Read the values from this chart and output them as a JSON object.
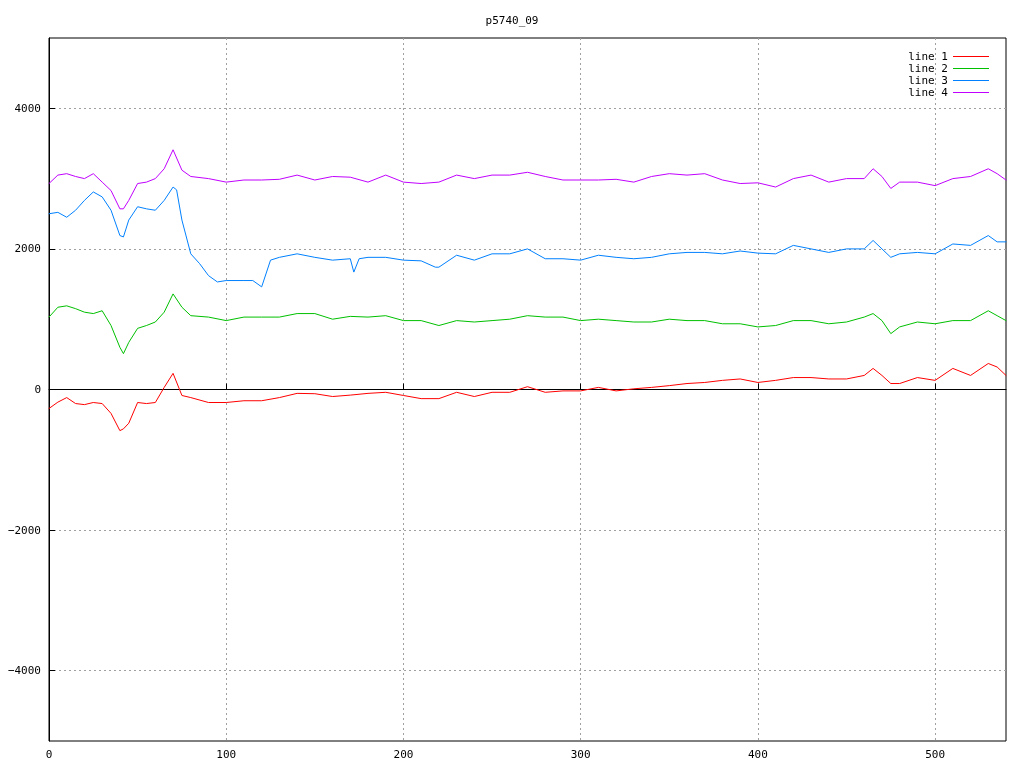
{
  "chart_data": {
    "type": "line",
    "title": "p5740_09",
    "xlim": [
      0,
      540
    ],
    "xticks": [
      0,
      100,
      200,
      300,
      400,
      500
    ],
    "ylim": [
      -5000,
      5000
    ],
    "yticks": [
      -4000,
      -2000,
      0,
      2000,
      4000
    ],
    "grid": true,
    "legend": "top right",
    "marker": "none",
    "line_style": "solid",
    "series": [
      {
        "name": "line 1",
        "color": "#ff0000",
        "x": [
          0,
          5,
          10,
          15,
          20,
          25,
          30,
          35,
          40,
          42,
          45,
          50,
          55,
          60,
          65,
          70,
          75,
          80,
          90,
          100,
          110,
          120,
          130,
          140,
          150,
          160,
          170,
          180,
          190,
          200,
          210,
          220,
          230,
          240,
          250,
          260,
          270,
          280,
          290,
          300,
          310,
          320,
          330,
          340,
          350,
          360,
          370,
          380,
          390,
          400,
          410,
          420,
          430,
          440,
          450,
          460,
          465,
          470,
          475,
          480,
          490,
          500,
          510,
          520,
          530,
          535,
          540
        ],
        "values": [
          -270,
          -180,
          -115,
          -200,
          -215,
          -185,
          -200,
          -340,
          -585,
          -560,
          -480,
          -185,
          -200,
          -185,
          30,
          230,
          -85,
          -115,
          -185,
          -185,
          -160,
          -160,
          -115,
          -55,
          -60,
          -100,
          -80,
          -55,
          -40,
          -85,
          -130,
          -130,
          -40,
          -100,
          -40,
          -40,
          40,
          -40,
          -20,
          -20,
          30,
          -20,
          10,
          30,
          55,
          85,
          100,
          130,
          150,
          100,
          130,
          170,
          170,
          150,
          150,
          200,
          300,
          200,
          85,
          85,
          170,
          130,
          300,
          200,
          370,
          320,
          200
        ]
      },
      {
        "name": "line 2",
        "color": "#00c000",
        "x": [
          0,
          5,
          10,
          15,
          20,
          25,
          30,
          35,
          40,
          42,
          45,
          50,
          55,
          60,
          65,
          70,
          75,
          80,
          90,
          100,
          110,
          120,
          130,
          140,
          150,
          160,
          170,
          180,
          190,
          200,
          210,
          220,
          230,
          240,
          250,
          260,
          270,
          280,
          290,
          300,
          310,
          320,
          330,
          340,
          350,
          360,
          370,
          380,
          390,
          400,
          410,
          420,
          430,
          440,
          450,
          460,
          465,
          470,
          475,
          480,
          490,
          500,
          510,
          520,
          530,
          535,
          540
        ],
        "values": [
          1030,
          1170,
          1190,
          1150,
          1100,
          1080,
          1120,
          910,
          600,
          510,
          670,
          870,
          910,
          960,
          1100,
          1360,
          1170,
          1050,
          1030,
          980,
          1030,
          1030,
          1030,
          1080,
          1080,
          1000,
          1040,
          1030,
          1050,
          980,
          980,
          910,
          980,
          960,
          980,
          1000,
          1050,
          1030,
          1030,
          980,
          1000,
          980,
          960,
          960,
          1000,
          980,
          980,
          935,
          935,
          890,
          910,
          980,
          980,
          935,
          960,
          1030,
          1080,
          980,
          795,
          890,
          960,
          935,
          980,
          980,
          1120,
          1050,
          980
        ]
      },
      {
        "name": "line 3",
        "color": "#0080ff",
        "x": [
          0,
          5,
          10,
          15,
          20,
          25,
          30,
          35,
          40,
          42,
          45,
          50,
          55,
          60,
          65,
          70,
          72,
          75,
          80,
          85,
          90,
          95,
          100,
          110,
          115,
          120,
          125,
          130,
          140,
          150,
          160,
          170,
          172,
          175,
          180,
          190,
          200,
          210,
          218,
          220,
          230,
          240,
          250,
          260,
          270,
          280,
          290,
          300,
          310,
          320,
          330,
          340,
          350,
          360,
          370,
          380,
          390,
          400,
          410,
          420,
          430,
          440,
          450,
          460,
          465,
          470,
          475,
          480,
          490,
          500,
          510,
          520,
          530,
          535,
          540
        ],
        "values": [
          2500,
          2520,
          2450,
          2550,
          2690,
          2810,
          2740,
          2550,
          2190,
          2170,
          2410,
          2600,
          2570,
          2550,
          2690,
          2880,
          2840,
          2410,
          1930,
          1790,
          1620,
          1530,
          1550,
          1550,
          1550,
          1460,
          1840,
          1880,
          1930,
          1880,
          1840,
          1860,
          1670,
          1860,
          1880,
          1880,
          1840,
          1830,
          1740,
          1740,
          1910,
          1840,
          1930,
          1930,
          2000,
          1860,
          1860,
          1840,
          1910,
          1880,
          1860,
          1880,
          1930,
          1950,
          1950,
          1930,
          1970,
          1940,
          1930,
          2050,
          2000,
          1950,
          2000,
          2000,
          2120,
          2000,
          1880,
          1930,
          1950,
          1930,
          2070,
          2050,
          2190,
          2100,
          2100
        ]
      },
      {
        "name": "line 4",
        "color": "#c000ff",
        "x": [
          0,
          5,
          10,
          15,
          20,
          25,
          30,
          35,
          40,
          42,
          45,
          50,
          55,
          60,
          65,
          70,
          75,
          80,
          90,
          100,
          110,
          120,
          130,
          140,
          150,
          160,
          170,
          180,
          190,
          200,
          210,
          220,
          230,
          240,
          250,
          260,
          270,
          280,
          290,
          300,
          310,
          320,
          330,
          340,
          350,
          360,
          370,
          380,
          390,
          400,
          410,
          420,
          430,
          440,
          450,
          460,
          465,
          470,
          475,
          480,
          490,
          500,
          510,
          520,
          530,
          535,
          540
        ],
        "values": [
          2930,
          3050,
          3070,
          3030,
          3000,
          3070,
          2950,
          2830,
          2570,
          2570,
          2690,
          2930,
          2950,
          3000,
          3140,
          3410,
          3120,
          3030,
          3000,
          2950,
          2980,
          2980,
          2990,
          3050,
          2980,
          3030,
          3020,
          2950,
          3050,
          2950,
          2930,
          2950,
          3050,
          3000,
          3050,
          3050,
          3090,
          3030,
          2980,
          2980,
          2980,
          2990,
          2950,
          3030,
          3070,
          3050,
          3070,
          2980,
          2930,
          2940,
          2880,
          3000,
          3050,
          2950,
          3000,
          3000,
          3140,
          3030,
          2860,
          2950,
          2950,
          2900,
          3000,
          3030,
          3140,
          3070,
          2980
        ]
      }
    ]
  }
}
